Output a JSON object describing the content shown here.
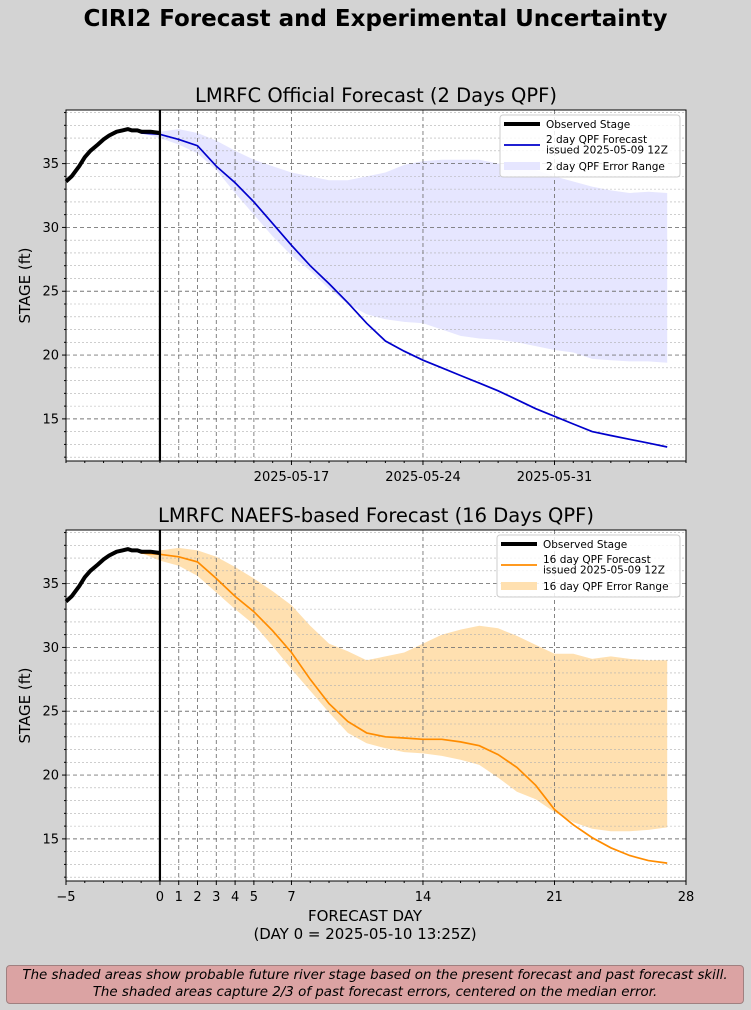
{
  "suptitle": "CIRI2 Forecast and Experimental Uncertainty",
  "footer": {
    "line1": "The shaded areas show probable future river stage based on the present forecast and past forecast skill.",
    "line2": "The shaded areas capture 2/3 of past forecast errors, centered on the median error."
  },
  "chart_data": [
    {
      "type": "line",
      "title": "LMRFC Official Forecast (2 Days QPF)",
      "ylabel": "STAGE (ft)",
      "xlabel": "",
      "xlim": [
        -5,
        28
      ],
      "ylim": [
        11.7,
        39.2
      ],
      "yticks": [
        15,
        20,
        25,
        30,
        35
      ],
      "xticks": [
        {
          "x": 7,
          "label": "2025-05-17"
        },
        {
          "x": 14,
          "label": "2025-05-24"
        },
        {
          "x": 21,
          "label": "2025-05-31"
        }
      ],
      "now_line": 0,
      "day_gridlines": [
        1,
        2,
        3,
        4,
        5,
        7,
        14,
        21
      ],
      "grid": true,
      "legend_position": "top-right",
      "colors": {
        "observed": "#000000",
        "forecast": "#0000cc",
        "band": "#e6e6ff"
      },
      "observed": {
        "name": "Observed Stage",
        "x": [
          -5,
          -4.7,
          -4.3,
          -4,
          -3.7,
          -3.3,
          -3,
          -2.7,
          -2.3,
          -2,
          -1.7,
          -1.5,
          -1.2,
          -1,
          -0.5,
          0
        ],
        "y": [
          33.6,
          34,
          34.8,
          35.5,
          36,
          36.5,
          36.9,
          37.2,
          37.5,
          37.6,
          37.7,
          37.6,
          37.6,
          37.5,
          37.5,
          37.4
        ]
      },
      "forecast": {
        "name": "2 day QPF Forecast\nissued 2025-05-09 12Z",
        "x": [
          -1,
          0,
          1,
          2,
          3,
          4,
          5,
          6,
          7,
          8,
          9,
          10,
          11,
          12,
          13,
          14,
          15,
          16,
          17,
          18,
          19,
          20,
          21,
          22,
          23,
          24,
          25,
          26,
          27
        ],
        "y": [
          37.4,
          37.3,
          36.9,
          36.4,
          34.8,
          33.5,
          32,
          30.3,
          28.6,
          27,
          25.6,
          24.1,
          22.5,
          21.1,
          20.3,
          19.6,
          19,
          18.4,
          17.8,
          17.2,
          16.5,
          15.8,
          15.2,
          14.6,
          14,
          13.7,
          13.4,
          13.1,
          12.8
        ]
      },
      "band": {
        "name": "2 day QPF Error Range",
        "x": [
          -1,
          0,
          1,
          2,
          3,
          4,
          5,
          6,
          7,
          8,
          9,
          10,
          11,
          12,
          13,
          14,
          15,
          16,
          17,
          18,
          19,
          20,
          21,
          22,
          23,
          24,
          25,
          26,
          27
        ],
        "upper": [
          37.4,
          37.5,
          37.7,
          37.4,
          36.8,
          36,
          35.3,
          34.8,
          34.3,
          34,
          33.7,
          33.7,
          34,
          34.3,
          34.9,
          35.2,
          35.3,
          35.3,
          35.3,
          35,
          34.8,
          34.5,
          34,
          33.6,
          33.2,
          32.9,
          32.7,
          32.8,
          32.7
        ],
        "lower": [
          37.4,
          37,
          36.5,
          35.8,
          34.5,
          32.7,
          31,
          29.3,
          27.8,
          26.6,
          25.2,
          24,
          23.2,
          22.8,
          22.6,
          22.5,
          22,
          21.5,
          21.3,
          21.2,
          21,
          20.7,
          20.4,
          20.2,
          19.7,
          19.6,
          19.5,
          19.5,
          19.4
        ]
      }
    },
    {
      "type": "line",
      "title": "LMRFC NAEFS-based Forecast (16 Days QPF)",
      "ylabel": "STAGE (ft)",
      "xlabel": "FORECAST DAY",
      "xlabel2": "(DAY 0 = 2025-05-10 13:25Z)",
      "xlim": [
        -5,
        28
      ],
      "ylim": [
        11.7,
        39.2
      ],
      "yticks": [
        15,
        20,
        25,
        30,
        35
      ],
      "xticks": [
        {
          "x": -5,
          "label": "−5"
        },
        {
          "x": 0,
          "label": "0"
        },
        {
          "x": 1,
          "label": "1"
        },
        {
          "x": 2,
          "label": "2"
        },
        {
          "x": 3,
          "label": "3"
        },
        {
          "x": 4,
          "label": "4"
        },
        {
          "x": 5,
          "label": "5"
        },
        {
          "x": 7,
          "label": "7"
        },
        {
          "x": 14,
          "label": "14"
        },
        {
          "x": 21,
          "label": "21"
        },
        {
          "x": 28,
          "label": "28"
        }
      ],
      "now_line": 0,
      "day_gridlines": [
        1,
        2,
        3,
        4,
        5,
        7,
        14,
        21
      ],
      "grid": true,
      "legend_position": "top-right",
      "colors": {
        "observed": "#000000",
        "forecast": "#ff8c00",
        "band": "#ffe0b0"
      },
      "observed": {
        "name": "Observed Stage",
        "x": [
          -5,
          -4.7,
          -4.3,
          -4,
          -3.7,
          -3.3,
          -3,
          -2.7,
          -2.3,
          -2,
          -1.7,
          -1.5,
          -1.2,
          -1,
          -0.5,
          0
        ],
        "y": [
          33.6,
          34,
          34.8,
          35.5,
          36,
          36.5,
          36.9,
          37.2,
          37.5,
          37.6,
          37.7,
          37.6,
          37.6,
          37.5,
          37.5,
          37.4
        ]
      },
      "forecast": {
        "name": "16 day QPF Forecast\nissued 2025-05-09 12Z",
        "x": [
          -1,
          0,
          1,
          2,
          3,
          4,
          5,
          6,
          7,
          8,
          9,
          10,
          11,
          12,
          13,
          14,
          15,
          16,
          17,
          18,
          19,
          20,
          21,
          22,
          23,
          24,
          25,
          26,
          27
        ],
        "y": [
          37.4,
          37.3,
          37.1,
          36.7,
          35.4,
          34,
          32.8,
          31.3,
          29.6,
          27.5,
          25.6,
          24.2,
          23.3,
          23,
          22.9,
          22.8,
          22.8,
          22.6,
          22.3,
          21.6,
          20.6,
          19.2,
          17.3,
          16.1,
          15.1,
          14.3,
          13.7,
          13.3,
          13.1
        ]
      },
      "band": {
        "name": "16 day QPF Error Range",
        "x": [
          -1,
          0,
          1,
          2,
          3,
          4,
          5,
          6,
          7,
          8,
          9,
          10,
          11,
          12,
          13,
          14,
          15,
          16,
          17,
          18,
          19,
          20,
          21,
          22,
          23,
          24,
          25,
          26,
          27
        ],
        "upper": [
          37.4,
          37.6,
          37.8,
          37.6,
          37.1,
          36.3,
          35.4,
          34.4,
          33.3,
          31.7,
          30.3,
          29.7,
          29,
          29.3,
          29.6,
          30.3,
          31,
          31.4,
          31.7,
          31.5,
          30.9,
          30.2,
          29.5,
          29.5,
          29.1,
          29.3,
          29.1,
          29,
          29
        ],
        "lower": [
          37.4,
          36.8,
          36.4,
          35.6,
          34.3,
          33,
          31.8,
          30.1,
          28.3,
          26.6,
          24.9,
          23.3,
          22.5,
          22.1,
          21.8,
          21.7,
          21.5,
          21.2,
          20.8,
          19.8,
          18.7,
          18.1,
          17.1,
          16.3,
          15.8,
          15.6,
          15.6,
          15.7,
          15.9
        ]
      }
    }
  ]
}
